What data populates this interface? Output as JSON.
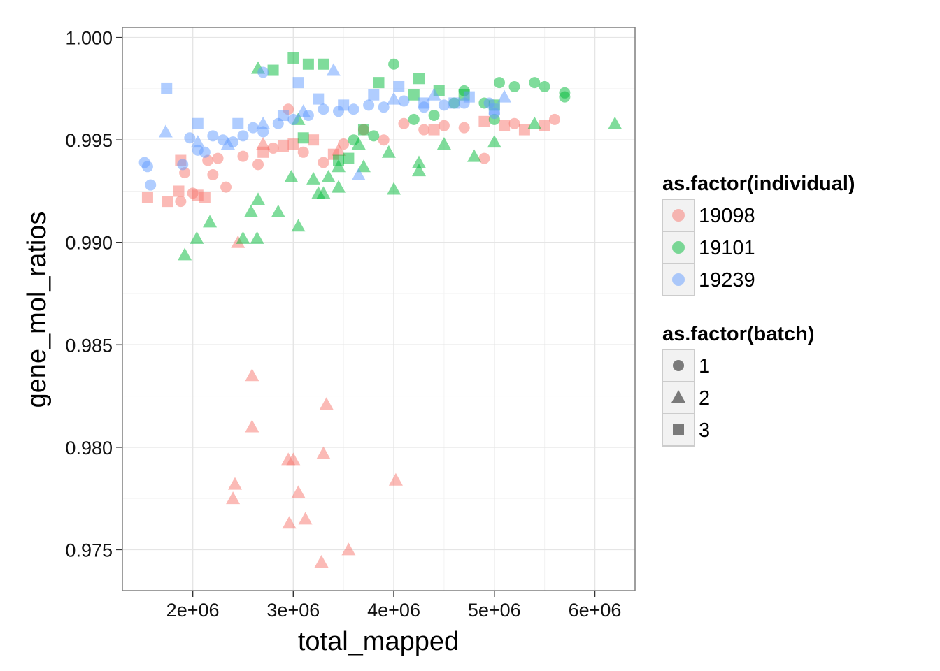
{
  "chart_data": {
    "type": "scatter",
    "xlabel": "total_mapped",
    "ylabel": "gene_mol_ratios",
    "xlim": [
      1300000,
      6400000
    ],
    "ylim": [
      0.973,
      1.0005
    ],
    "x_ticks": [
      2000000,
      3000000,
      4000000,
      5000000,
      6000000
    ],
    "x_tick_labels": [
      "2e+06",
      "3e+06",
      "4e+06",
      "5e+06",
      "6e+06"
    ],
    "y_ticks": [
      0.975,
      0.98,
      0.985,
      0.99,
      0.995,
      1.0
    ],
    "y_tick_labels": [
      "0.975",
      "0.980",
      "0.985",
      "0.990",
      "0.995",
      "1.000"
    ],
    "grid": true,
    "point_alpha": 0.5,
    "legend_placement": "right",
    "legends": [
      {
        "title": "as.factor(individual)",
        "entries": [
          {
            "label": "19098",
            "color": "#F8766D"
          },
          {
            "label": "19101",
            "color": "#00BA38"
          },
          {
            "label": "19239",
            "color": "#619CFF"
          }
        ]
      },
      {
        "title": "as.factor(batch)",
        "entries": [
          {
            "label": "1",
            "shape": "circle"
          },
          {
            "label": "2",
            "shape": "triangle"
          },
          {
            "label": "3",
            "shape": "square"
          }
        ]
      }
    ],
    "series": [
      {
        "individual": "19098",
        "batch": "1",
        "color": "#F8766D",
        "shape": "circle",
        "points": [
          [
            1880000,
            0.992
          ],
          [
            1920000,
            0.9934
          ],
          [
            2000000,
            0.9924
          ],
          [
            2150000,
            0.994
          ],
          [
            2200000,
            0.9933
          ],
          [
            2250000,
            0.9941
          ],
          [
            2330000,
            0.9927
          ],
          [
            2500000,
            0.9942
          ],
          [
            2650000,
            0.9938
          ],
          [
            2800000,
            0.9946
          ],
          [
            2950000,
            0.9965
          ],
          [
            3100000,
            0.9944
          ],
          [
            3300000,
            0.9939
          ],
          [
            3500000,
            0.9948
          ],
          [
            3700000,
            0.9955
          ],
          [
            3900000,
            0.995
          ],
          [
            4100000,
            0.9958
          ],
          [
            4300000,
            0.9955
          ],
          [
            4500000,
            0.9957
          ],
          [
            4700000,
            0.9956
          ],
          [
            4900000,
            0.9941
          ],
          [
            5200000,
            0.9958
          ],
          [
            5600000,
            0.996
          ]
        ]
      },
      {
        "individual": "19098",
        "batch": "2",
        "color": "#F8766D",
        "shape": "triangle",
        "points": [
          [
            2450000,
            0.99
          ],
          [
            2420000,
            0.9782
          ],
          [
            2400000,
            0.9775
          ],
          [
            2590000,
            0.9835
          ],
          [
            2590000,
            0.981
          ],
          [
            2950000,
            0.9794
          ],
          [
            3000000,
            0.9794
          ],
          [
            3050000,
            0.9778
          ],
          [
            2960000,
            0.9763
          ],
          [
            3120000,
            0.9765
          ],
          [
            3300000,
            0.9797
          ],
          [
            3330000,
            0.9821
          ],
          [
            3280000,
            0.9744
          ],
          [
            3550000,
            0.975
          ],
          [
            4020000,
            0.9784
          ],
          [
            2700000,
            0.9948
          ],
          [
            3450000,
            0.9945
          ]
        ]
      },
      {
        "individual": "19098",
        "batch": "3",
        "color": "#F8766D",
        "shape": "square",
        "points": [
          [
            1550000,
            0.9922
          ],
          [
            1750000,
            0.992
          ],
          [
            1860000,
            0.9925
          ],
          [
            1880000,
            0.994
          ],
          [
            2050000,
            0.9923
          ],
          [
            2120000,
            0.9922
          ],
          [
            2700000,
            0.9944
          ],
          [
            2900000,
            0.9947
          ],
          [
            3000000,
            0.9948
          ],
          [
            3200000,
            0.995
          ],
          [
            3400000,
            0.9943
          ],
          [
            4400000,
            0.9955
          ],
          [
            4900000,
            0.9959
          ],
          [
            5100000,
            0.9957
          ],
          [
            5300000,
            0.9955
          ],
          [
            5500000,
            0.9957
          ]
        ]
      },
      {
        "individual": "19101",
        "batch": "1",
        "color": "#00BA38",
        "shape": "circle",
        "points": [
          [
            3600000,
            0.995
          ],
          [
            3800000,
            0.9952
          ],
          [
            4000000,
            0.9987
          ],
          [
            4200000,
            0.996
          ],
          [
            4400000,
            0.9962
          ],
          [
            4600000,
            0.9968
          ],
          [
            4700000,
            0.9974
          ],
          [
            4900000,
            0.9968
          ],
          [
            5050000,
            0.9978
          ],
          [
            5200000,
            0.9976
          ],
          [
            5400000,
            0.9978
          ],
          [
            5500000,
            0.9976
          ],
          [
            5700000,
            0.9973
          ],
          [
            5700000,
            0.9971
          ],
          [
            5000000,
            0.996
          ]
        ]
      },
      {
        "individual": "19101",
        "batch": "2",
        "color": "#00BA38",
        "shape": "triangle",
        "points": [
          [
            1920000,
            0.9894
          ],
          [
            2040000,
            0.9902
          ],
          [
            2170000,
            0.991
          ],
          [
            2500000,
            0.9902
          ],
          [
            2640000,
            0.9902
          ],
          [
            2580000,
            0.9915
          ],
          [
            2650000,
            0.9921
          ],
          [
            2850000,
            0.9915
          ],
          [
            3050000,
            0.9908
          ],
          [
            2980000,
            0.9932
          ],
          [
            3200000,
            0.9931
          ],
          [
            3250000,
            0.9924
          ],
          [
            3300000,
            0.9924
          ],
          [
            3350000,
            0.9932
          ],
          [
            3450000,
            0.9927
          ],
          [
            3450000,
            0.9937
          ],
          [
            3700000,
            0.9937
          ],
          [
            4000000,
            0.9926
          ],
          [
            4250000,
            0.9935
          ],
          [
            4250000,
            0.9939
          ],
          [
            4500000,
            0.9948
          ],
          [
            4800000,
            0.9942
          ],
          [
            5000000,
            0.9949
          ],
          [
            5400000,
            0.9958
          ],
          [
            6200000,
            0.9958
          ],
          [
            2650000,
            0.9985
          ],
          [
            3050000,
            0.996
          ],
          [
            3650000,
            0.9948
          ],
          [
            3950000,
            0.9944
          ]
        ]
      },
      {
        "individual": "19101",
        "batch": "3",
        "color": "#00BA38",
        "shape": "square",
        "points": [
          [
            2800000,
            0.9984
          ],
          [
            3000000,
            0.999
          ],
          [
            3150000,
            0.9987
          ],
          [
            3300000,
            0.9987
          ],
          [
            3450000,
            0.994
          ],
          [
            3550000,
            0.9941
          ],
          [
            3850000,
            0.9978
          ],
          [
            4200000,
            0.9972
          ],
          [
            4250000,
            0.998
          ],
          [
            4450000,
            0.9974
          ],
          [
            4700000,
            0.9972
          ],
          [
            5000000,
            0.9967
          ],
          [
            3100000,
            0.9951
          ],
          [
            3700000,
            0.9955
          ]
        ]
      },
      {
        "individual": "19239",
        "batch": "1",
        "color": "#619CFF",
        "shape": "circle",
        "points": [
          [
            1520000,
            0.9939
          ],
          [
            1550000,
            0.9937
          ],
          [
            1580000,
            0.9928
          ],
          [
            1900000,
            0.9938
          ],
          [
            1970000,
            0.9951
          ],
          [
            2050000,
            0.9945
          ],
          [
            2120000,
            0.9944
          ],
          [
            2200000,
            0.9952
          ],
          [
            2300000,
            0.995
          ],
          [
            2400000,
            0.9949
          ],
          [
            2500000,
            0.9952
          ],
          [
            2600000,
            0.9956
          ],
          [
            2700000,
            0.9954
          ],
          [
            2700000,
            0.9983
          ],
          [
            2850000,
            0.9958
          ],
          [
            3000000,
            0.996
          ],
          [
            3150000,
            0.9962
          ],
          [
            3300000,
            0.9965
          ],
          [
            3450000,
            0.9964
          ],
          [
            3600000,
            0.9965
          ],
          [
            3750000,
            0.9967
          ],
          [
            3900000,
            0.9966
          ],
          [
            4100000,
            0.9969
          ],
          [
            4300000,
            0.9966
          ],
          [
            4500000,
            0.9967
          ],
          [
            4700000,
            0.9968
          ],
          [
            4950000,
            0.9968
          ],
          [
            5000000,
            0.9963
          ]
        ]
      },
      {
        "individual": "19239",
        "batch": "2",
        "color": "#619CFF",
        "shape": "triangle",
        "points": [
          [
            1730000,
            0.9954
          ],
          [
            2050000,
            0.9949
          ],
          [
            2350000,
            0.9948
          ],
          [
            2700000,
            0.9958
          ],
          [
            3100000,
            0.9964
          ],
          [
            3400000,
            0.9984
          ],
          [
            3650000,
            0.9933
          ],
          [
            4000000,
            0.997
          ],
          [
            4400000,
            0.9972
          ],
          [
            5100000,
            0.9971
          ]
        ]
      },
      {
        "individual": "19239",
        "batch": "3",
        "color": "#619CFF",
        "shape": "square",
        "points": [
          [
            1740000,
            0.9975
          ],
          [
            2050000,
            0.9958
          ],
          [
            2450000,
            0.9958
          ],
          [
            2900000,
            0.9962
          ],
          [
            3050000,
            0.9978
          ],
          [
            3250000,
            0.997
          ],
          [
            3500000,
            0.9967
          ],
          [
            3800000,
            0.9972
          ],
          [
            4050000,
            0.9976
          ],
          [
            4300000,
            0.9968
          ],
          [
            4600000,
            0.9968
          ],
          [
            4750000,
            0.9971
          ],
          [
            5000000,
            0.9965
          ]
        ]
      }
    ]
  }
}
